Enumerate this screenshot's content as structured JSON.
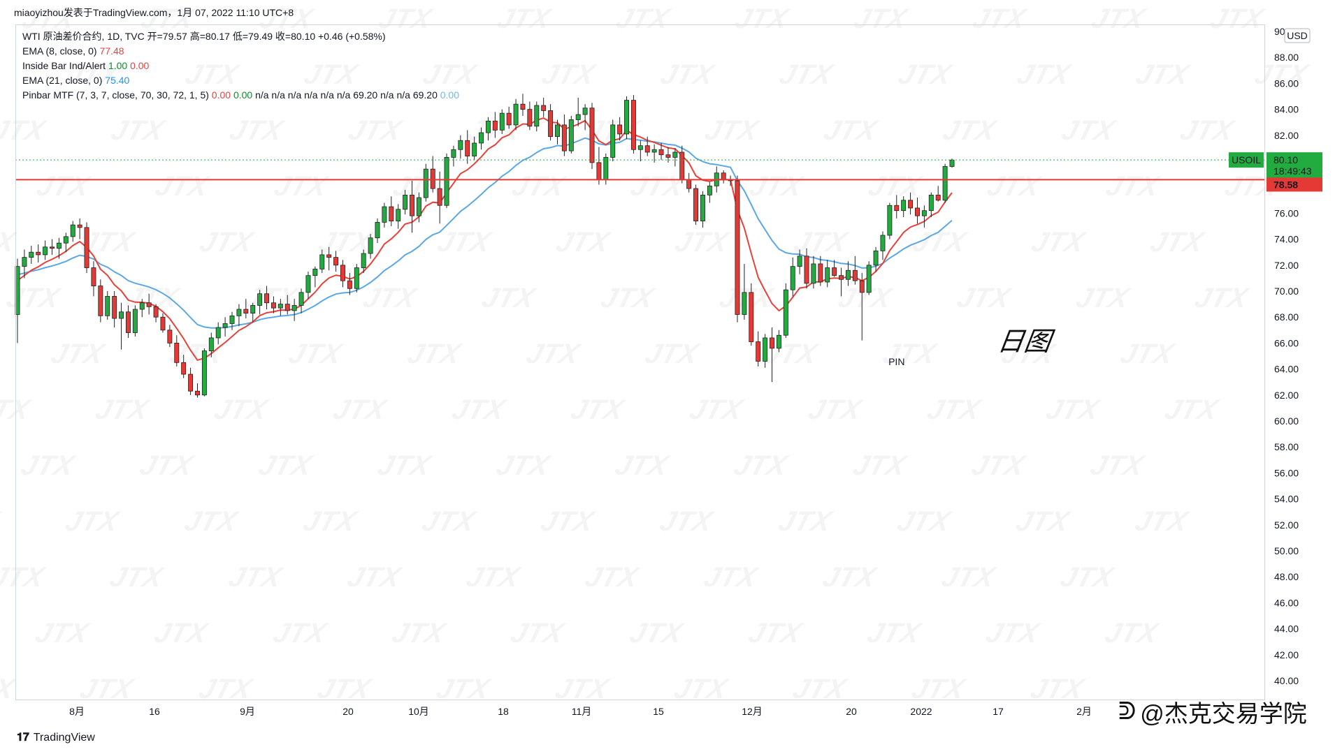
{
  "header": {
    "author_line": "miaoyizhou发表于TradingView.com，1月 07, 2022 11:10 UTC+8"
  },
  "legend": {
    "symbol_line": "WTI 原油差价合约, 1D, TVC  开=79.57  高=80.17  低=79.49  收=80.10  +0.46 (+0.58%)",
    "ema8_label": "EMA (8, close, 0)",
    "ema8_value": "77.48",
    "inside_bar_label": "Inside Bar Ind/Alert",
    "inside_bar_v1": "1.00",
    "inside_bar_v2": "0.00",
    "ema21_label": "EMA (21, close, 0)",
    "ema21_value": "75.40",
    "pinbar_label": "Pinbar MTF (7, 3, 7, close, 70, 30, 72, 1, 5)",
    "pinbar_v1": "0.00",
    "pinbar_v2": "0.00",
    "pinbar_rest": "n/a  n/a  n/a  n/a  n/a  n/a  69.20  n/a  n/a  69.20",
    "pinbar_last": "0.00"
  },
  "annotations": {
    "period_label": "日图",
    "pin_label": "PIN",
    "corner_brand": "@杰克交易学院",
    "tradingview_brand": "TradingView",
    "watermark": "JTX"
  },
  "price_axis": {
    "currency": "USD",
    "ticks": [
      "90.00",
      "88.00",
      "86.00",
      "84.00",
      "82.00",
      "80.00",
      "78.00",
      "76.00",
      "74.00",
      "72.00",
      "70.00",
      "68.00",
      "66.00",
      "64.00",
      "62.00",
      "60.00",
      "58.00",
      "56.00",
      "54.00",
      "52.00",
      "50.00",
      "48.00",
      "46.00",
      "44.00",
      "42.00",
      "40.00"
    ],
    "symbol_tag": "USOIL",
    "last_price": "80.10",
    "countdown": "18:49:43",
    "level_price": "78.58"
  },
  "time_axis": {
    "labels": [
      "8月",
      "16",
      "9月",
      "20",
      "10月",
      "18",
      "11月",
      "15",
      "12月",
      "20",
      "2022",
      "17",
      "2月"
    ]
  },
  "colors": {
    "up": "#22ab3e",
    "down": "#e53935",
    "ema8": "#e8413a",
    "ema21": "#5aa8e6",
    "level": "#e53935",
    "last_price_bg": "#22ab3e"
  },
  "chart_data": {
    "type": "candlestick",
    "title": "WTI 原油差价合约, 1D, TVC",
    "ylim": [
      40,
      90
    ],
    "horizontal_level": 78.58,
    "last_close": 80.1,
    "series": [
      {
        "name": "EMA (8, close, 0)",
        "last": 77.48
      },
      {
        "name": "EMA (21, close, 0)",
        "last": 75.4
      }
    ],
    "candles": [
      [
        68.2,
        72.5,
        66.0,
        71.9
      ],
      [
        71.9,
        73.2,
        71.0,
        72.6
      ],
      [
        72.6,
        73.5,
        72.1,
        73.0
      ],
      [
        73.0,
        73.6,
        72.2,
        72.8
      ],
      [
        72.8,
        73.9,
        72.4,
        73.4
      ],
      [
        73.4,
        74.0,
        72.8,
        73.3
      ],
      [
        73.3,
        74.1,
        72.5,
        73.7
      ],
      [
        73.7,
        74.5,
        73.0,
        74.2
      ],
      [
        74.2,
        75.4,
        73.8,
        75.1
      ],
      [
        75.1,
        75.6,
        74.0,
        74.9
      ],
      [
        74.9,
        75.3,
        71.4,
        71.8
      ],
      [
        71.8,
        72.3,
        69.6,
        70.4
      ],
      [
        70.4,
        70.9,
        67.6,
        68.1
      ],
      [
        68.1,
        70.0,
        67.8,
        69.6
      ],
      [
        69.6,
        70.0,
        67.2,
        67.9
      ],
      [
        67.9,
        69.1,
        65.5,
        68.4
      ],
      [
        68.4,
        68.9,
        66.4,
        66.8
      ],
      [
        66.8,
        68.9,
        66.5,
        68.6
      ],
      [
        68.6,
        69.4,
        68.0,
        69.1
      ],
      [
        69.1,
        69.8,
        68.2,
        68.8
      ],
      [
        68.8,
        69.0,
        67.6,
        68.0
      ],
      [
        68.0,
        68.3,
        66.8,
        67.0
      ],
      [
        67.0,
        67.4,
        65.7,
        66.0
      ],
      [
        66.0,
        66.6,
        64.2,
        64.5
      ],
      [
        64.5,
        65.1,
        63.3,
        63.6
      ],
      [
        63.6,
        64.1,
        62.0,
        62.3
      ],
      [
        62.3,
        62.9,
        61.8,
        62.0
      ],
      [
        62.0,
        65.6,
        61.9,
        65.4
      ],
      [
        65.4,
        66.8,
        64.9,
        66.4
      ],
      [
        66.4,
        67.6,
        65.9,
        67.2
      ],
      [
        67.2,
        68.0,
        66.5,
        67.5
      ],
      [
        67.5,
        68.4,
        67.0,
        68.1
      ],
      [
        68.1,
        69.0,
        67.3,
        68.6
      ],
      [
        68.6,
        69.4,
        67.9,
        68.3
      ],
      [
        68.3,
        69.1,
        67.6,
        68.9
      ],
      [
        68.9,
        70.1,
        68.2,
        69.8
      ],
      [
        69.8,
        70.4,
        68.6,
        69.1
      ],
      [
        69.1,
        69.6,
        68.3,
        68.7
      ],
      [
        68.7,
        69.4,
        68.1,
        69.0
      ],
      [
        69.0,
        69.7,
        68.2,
        68.5
      ],
      [
        68.5,
        69.4,
        67.7,
        68.9
      ],
      [
        68.9,
        70.2,
        68.3,
        69.9
      ],
      [
        69.9,
        71.5,
        69.4,
        71.2
      ],
      [
        71.2,
        71.9,
        70.3,
        71.7
      ],
      [
        71.7,
        73.2,
        71.4,
        72.8
      ],
      [
        72.8,
        73.4,
        71.6,
        72.6
      ],
      [
        72.6,
        73.1,
        71.5,
        72.0
      ],
      [
        72.0,
        72.4,
        70.3,
        70.8
      ],
      [
        70.8,
        71.4,
        69.7,
        70.2
      ],
      [
        70.2,
        72.1,
        69.9,
        71.8
      ],
      [
        71.8,
        73.2,
        71.4,
        72.9
      ],
      [
        72.9,
        74.4,
        72.5,
        74.1
      ],
      [
        74.1,
        75.6,
        73.7,
        75.3
      ],
      [
        75.3,
        76.8,
        74.9,
        76.5
      ],
      [
        76.5,
        77.3,
        75.0,
        75.4
      ],
      [
        75.4,
        76.7,
        74.8,
        76.3
      ],
      [
        76.3,
        77.8,
        75.9,
        77.4
      ],
      [
        77.4,
        78.5,
        74.5,
        75.8
      ],
      [
        75.8,
        77.6,
        75.3,
        77.2
      ],
      [
        77.2,
        79.8,
        76.9,
        79.4
      ],
      [
        79.4,
        80.4,
        77.6,
        77.9
      ],
      [
        77.9,
        79.2,
        75.2,
        76.6
      ],
      [
        76.6,
        80.6,
        76.4,
        80.3
      ],
      [
        80.3,
        81.2,
        79.6,
        80.9
      ],
      [
        80.9,
        82.0,
        80.2,
        81.6
      ],
      [
        81.6,
        82.4,
        79.8,
        80.4
      ],
      [
        80.4,
        81.9,
        80.1,
        81.4
      ],
      [
        81.4,
        82.6,
        80.9,
        82.2
      ],
      [
        82.2,
        83.4,
        81.6,
        83.1
      ],
      [
        83.1,
        83.8,
        81.8,
        82.4
      ],
      [
        82.4,
        84.0,
        82.1,
        83.7
      ],
      [
        83.7,
        84.2,
        82.5,
        82.8
      ],
      [
        82.8,
        84.8,
        82.4,
        84.4
      ],
      [
        84.4,
        85.2,
        83.5,
        84.0
      ],
      [
        84.0,
        84.6,
        82.4,
        82.7
      ],
      [
        82.7,
        84.6,
        82.3,
        84.3
      ],
      [
        84.3,
        84.9,
        83.4,
        83.9
      ],
      [
        83.9,
        84.4,
        81.6,
        81.9
      ],
      [
        81.9,
        83.2,
        81.3,
        82.8
      ],
      [
        82.8,
        83.6,
        80.4,
        80.8
      ],
      [
        80.8,
        83.5,
        80.6,
        83.2
      ],
      [
        83.2,
        84.9,
        82.7,
        83.6
      ],
      [
        83.6,
        84.4,
        82.4,
        84.1
      ],
      [
        84.1,
        84.5,
        79.4,
        79.9
      ],
      [
        79.9,
        81.1,
        78.2,
        78.6
      ],
      [
        78.6,
        80.6,
        78.2,
        80.3
      ],
      [
        80.3,
        83.2,
        80.0,
        82.8
      ],
      [
        82.8,
        83.4,
        81.6,
        82.1
      ],
      [
        82.1,
        85.0,
        81.7,
        84.7
      ],
      [
        84.7,
        85.1,
        80.6,
        80.9
      ],
      [
        80.9,
        81.6,
        80.0,
        81.2
      ],
      [
        81.2,
        81.9,
        80.4,
        80.7
      ],
      [
        80.7,
        81.3,
        79.9,
        80.9
      ],
      [
        80.9,
        81.4,
        80.1,
        80.5
      ],
      [
        80.5,
        81.1,
        79.9,
        80.3
      ],
      [
        80.3,
        81.0,
        79.6,
        80.7
      ],
      [
        80.7,
        81.2,
        78.3,
        78.6
      ],
      [
        78.6,
        79.1,
        77.6,
        77.9
      ],
      [
        77.9,
        78.2,
        75.1,
        75.4
      ],
      [
        75.4,
        77.7,
        74.9,
        77.4
      ],
      [
        77.4,
        78.4,
        76.8,
        78.1
      ],
      [
        78.1,
        79.6,
        77.6,
        79.1
      ],
      [
        79.1,
        79.3,
        78.3,
        78.6
      ],
      [
        78.6,
        78.9,
        78.1,
        78.5
      ],
      [
        78.5,
        78.9,
        67.6,
        68.2
      ],
      [
        68.2,
        72.1,
        67.8,
        69.9
      ],
      [
        69.9,
        70.6,
        65.8,
        66.1
      ],
      [
        66.1,
        66.9,
        64.2,
        64.6
      ],
      [
        64.6,
        66.7,
        64.1,
        66.4
      ],
      [
        66.4,
        67.2,
        63.0,
        65.6
      ],
      [
        65.6,
        67.0,
        65.3,
        66.6
      ],
      [
        66.6,
        70.6,
        66.4,
        70.1
      ],
      [
        70.1,
        72.6,
        69.6,
        71.9
      ],
      [
        71.9,
        73.2,
        71.3,
        72.7
      ],
      [
        72.7,
        73.3,
        70.2,
        70.6
      ],
      [
        70.6,
        72.7,
        70.2,
        72.1
      ],
      [
        72.1,
        72.7,
        70.4,
        70.7
      ],
      [
        70.7,
        72.4,
        70.3,
        71.8
      ],
      [
        71.8,
        72.4,
        71.1,
        71.2
      ],
      [
        71.2,
        71.8,
        69.6,
        70.9
      ],
      [
        70.9,
        72.3,
        70.4,
        71.6
      ],
      [
        71.6,
        72.7,
        70.5,
        70.8
      ],
      [
        70.8,
        71.4,
        66.2,
        69.9
      ],
      [
        69.9,
        72.3,
        69.7,
        72.0
      ],
      [
        72.0,
        73.4,
        71.5,
        73.1
      ],
      [
        73.1,
        74.6,
        72.4,
        74.3
      ],
      [
        74.3,
        76.8,
        74.0,
        76.6
      ],
      [
        76.6,
        77.4,
        75.6,
        76.2
      ],
      [
        76.2,
        77.3,
        75.7,
        77.0
      ],
      [
        77.0,
        77.6,
        75.9,
        76.4
      ],
      [
        76.4,
        77.2,
        75.2,
        75.8
      ],
      [
        75.8,
        76.6,
        74.9,
        76.2
      ],
      [
        76.2,
        77.6,
        75.7,
        77.4
      ],
      [
        77.4,
        78.1,
        76.9,
        77.0
      ],
      [
        77.0,
        79.8,
        76.8,
        79.6
      ],
      [
        79.6,
        80.2,
        79.5,
        80.1
      ]
    ]
  }
}
